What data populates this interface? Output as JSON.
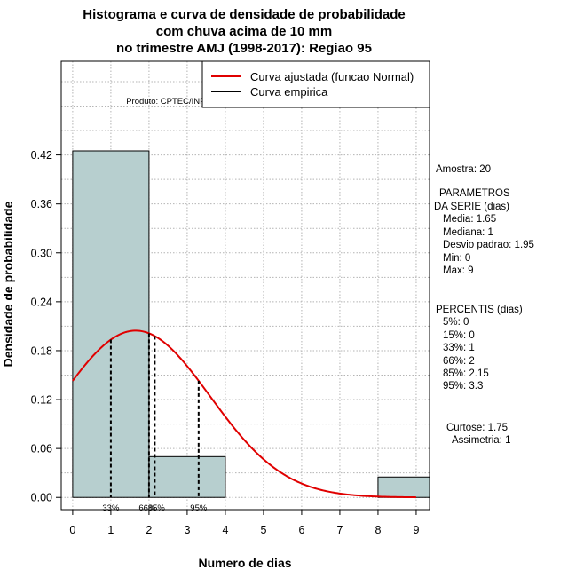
{
  "title": {
    "line1": "Histograma e curva de densidade de probabilidade",
    "line2": "com chuva acima de 10 mm",
    "line3": "no trimestre AMJ (1998-2017): Regiao 95"
  },
  "product_label": "Produto: CPTEC/INPE",
  "legend": {
    "fitted": "Curva ajustada (funcao Normal)",
    "empirical": "Curva empirica"
  },
  "stats": {
    "sample": "Amostra: 20",
    "params_title_1": "PARAMETROS",
    "params_title_2": "DA SERIE (dias)",
    "media": "Media: 1.65",
    "mediana": "Mediana: 1",
    "desvio": "Desvio padrao: 1.95",
    "min": "Min: 0",
    "max": "Max: 9",
    "percentis_title": "PERCENTIS (dias)",
    "p5": "5%: 0",
    "p15": "15%: 0",
    "p33": "33%: 1",
    "p66": "66%: 2",
    "p85": "85%: 2.15",
    "p95": "95%: 3.3",
    "curtose": "Curtose: 1.75",
    "assimetria": "Assimetria: 1"
  },
  "colors": {
    "bar_fill": "#b7cfcf",
    "curve": "#e00000",
    "grid": "#b4b4b4"
  },
  "chart_data": {
    "type": "bar",
    "title": "Histograma e curva de densidade de probabilidade com chuva acima de 10 mm no trimestre AMJ (1998-2017): Regiao 95",
    "xlabel": "Numero de dias",
    "ylabel": "Densidade de probabilidade",
    "xlim": [
      -0.3,
      9.35
    ],
    "ylim": [
      -0.015,
      0.535
    ],
    "x_ticks": [
      0,
      1,
      2,
      3,
      4,
      5,
      6,
      7,
      8,
      9
    ],
    "y_ticks": [
      0.0,
      0.06,
      0.12,
      0.18,
      0.24,
      0.3,
      0.36,
      0.42
    ],
    "y_tick_labels": [
      "0.00",
      "0.06",
      "0.12",
      "0.18",
      "0.24",
      "0.30",
      "0.36",
      "0.42"
    ],
    "histogram": [
      {
        "x0": 0,
        "x1": 2,
        "density": 0.425
      },
      {
        "x0": 2,
        "x1": 4,
        "density": 0.05
      },
      {
        "x0": 4,
        "x1": 6,
        "density": 0.0
      },
      {
        "x0": 6,
        "x1": 8,
        "density": 0.0
      },
      {
        "x0": 8,
        "x1": 10,
        "density": 0.025
      }
    ],
    "normal_fit": {
      "mean": 1.65,
      "sd": 1.95,
      "x_from": 0,
      "x_to": 9
    },
    "percentile_lines": [
      {
        "label": "33%",
        "x": 1
      },
      {
        "label": "66%",
        "x": 2
      },
      {
        "label": "85%",
        "x": 2.15
      },
      {
        "label": "95%",
        "x": 3.3
      }
    ]
  }
}
